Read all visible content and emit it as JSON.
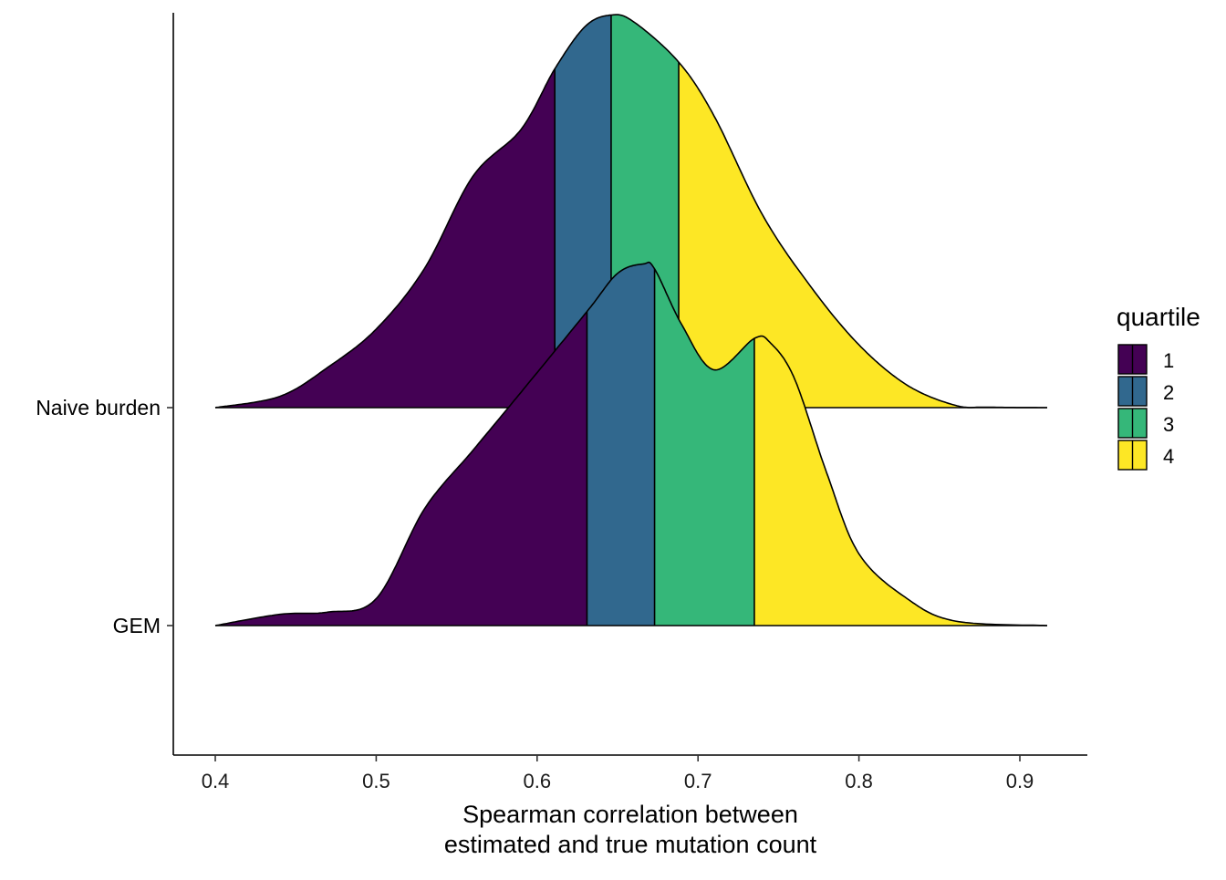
{
  "chart_data": {
    "type": "ridgeline",
    "xlabel_lines": [
      "Spearman correlation between",
      "estimated and true mutation count"
    ],
    "ylabel": "",
    "xlim": [
      0.4,
      0.917
    ],
    "x_ticks": [
      "0.4",
      "0.5",
      "0.6",
      "0.7",
      "0.8",
      "0.9"
    ],
    "categories": [
      "Naive burden",
      "GEM"
    ],
    "legend": {
      "title": "quartile",
      "position": "right",
      "items": [
        {
          "label": "1",
          "color": "#440154"
        },
        {
          "label": "2",
          "color": "#31688E"
        },
        {
          "label": "3",
          "color": "#35B779"
        },
        {
          "label": "4",
          "color": "#FDE725"
        }
      ]
    },
    "series": [
      {
        "name": "Naive burden",
        "quartile_cuts": [
          0.611,
          0.646,
          0.688
        ],
        "x": [
          0.4,
          0.44,
          0.47,
          0.5,
          0.53,
          0.56,
          0.59,
          0.611,
          0.63,
          0.646,
          0.66,
          0.688,
          0.71,
          0.74,
          0.77,
          0.8,
          0.83,
          0.86,
          0.88,
          0.917
        ],
        "density": [
          0.0,
          0.25,
          0.9,
          1.75,
          3.1,
          5.15,
          6.2,
          7.55,
          8.5,
          8.75,
          8.6,
          7.7,
          6.5,
          4.3,
          2.7,
          1.4,
          0.5,
          0.05,
          0.01,
          0.0
        ]
      },
      {
        "name": "GEM",
        "quartile_cuts": [
          0.631,
          0.673,
          0.735
        ],
        "x": [
          0.4,
          0.44,
          0.47,
          0.5,
          0.53,
          0.56,
          0.59,
          0.631,
          0.65,
          0.666,
          0.673,
          0.69,
          0.71,
          0.735,
          0.745,
          0.76,
          0.78,
          0.8,
          0.83,
          0.86,
          0.917
        ],
        "density": [
          0.0,
          0.25,
          0.3,
          0.6,
          2.6,
          3.9,
          5.2,
          7.0,
          7.85,
          8.06,
          7.95,
          6.7,
          5.7,
          6.4,
          6.3,
          5.5,
          3.4,
          1.6,
          0.6,
          0.1,
          0.0
        ]
      }
    ]
  }
}
